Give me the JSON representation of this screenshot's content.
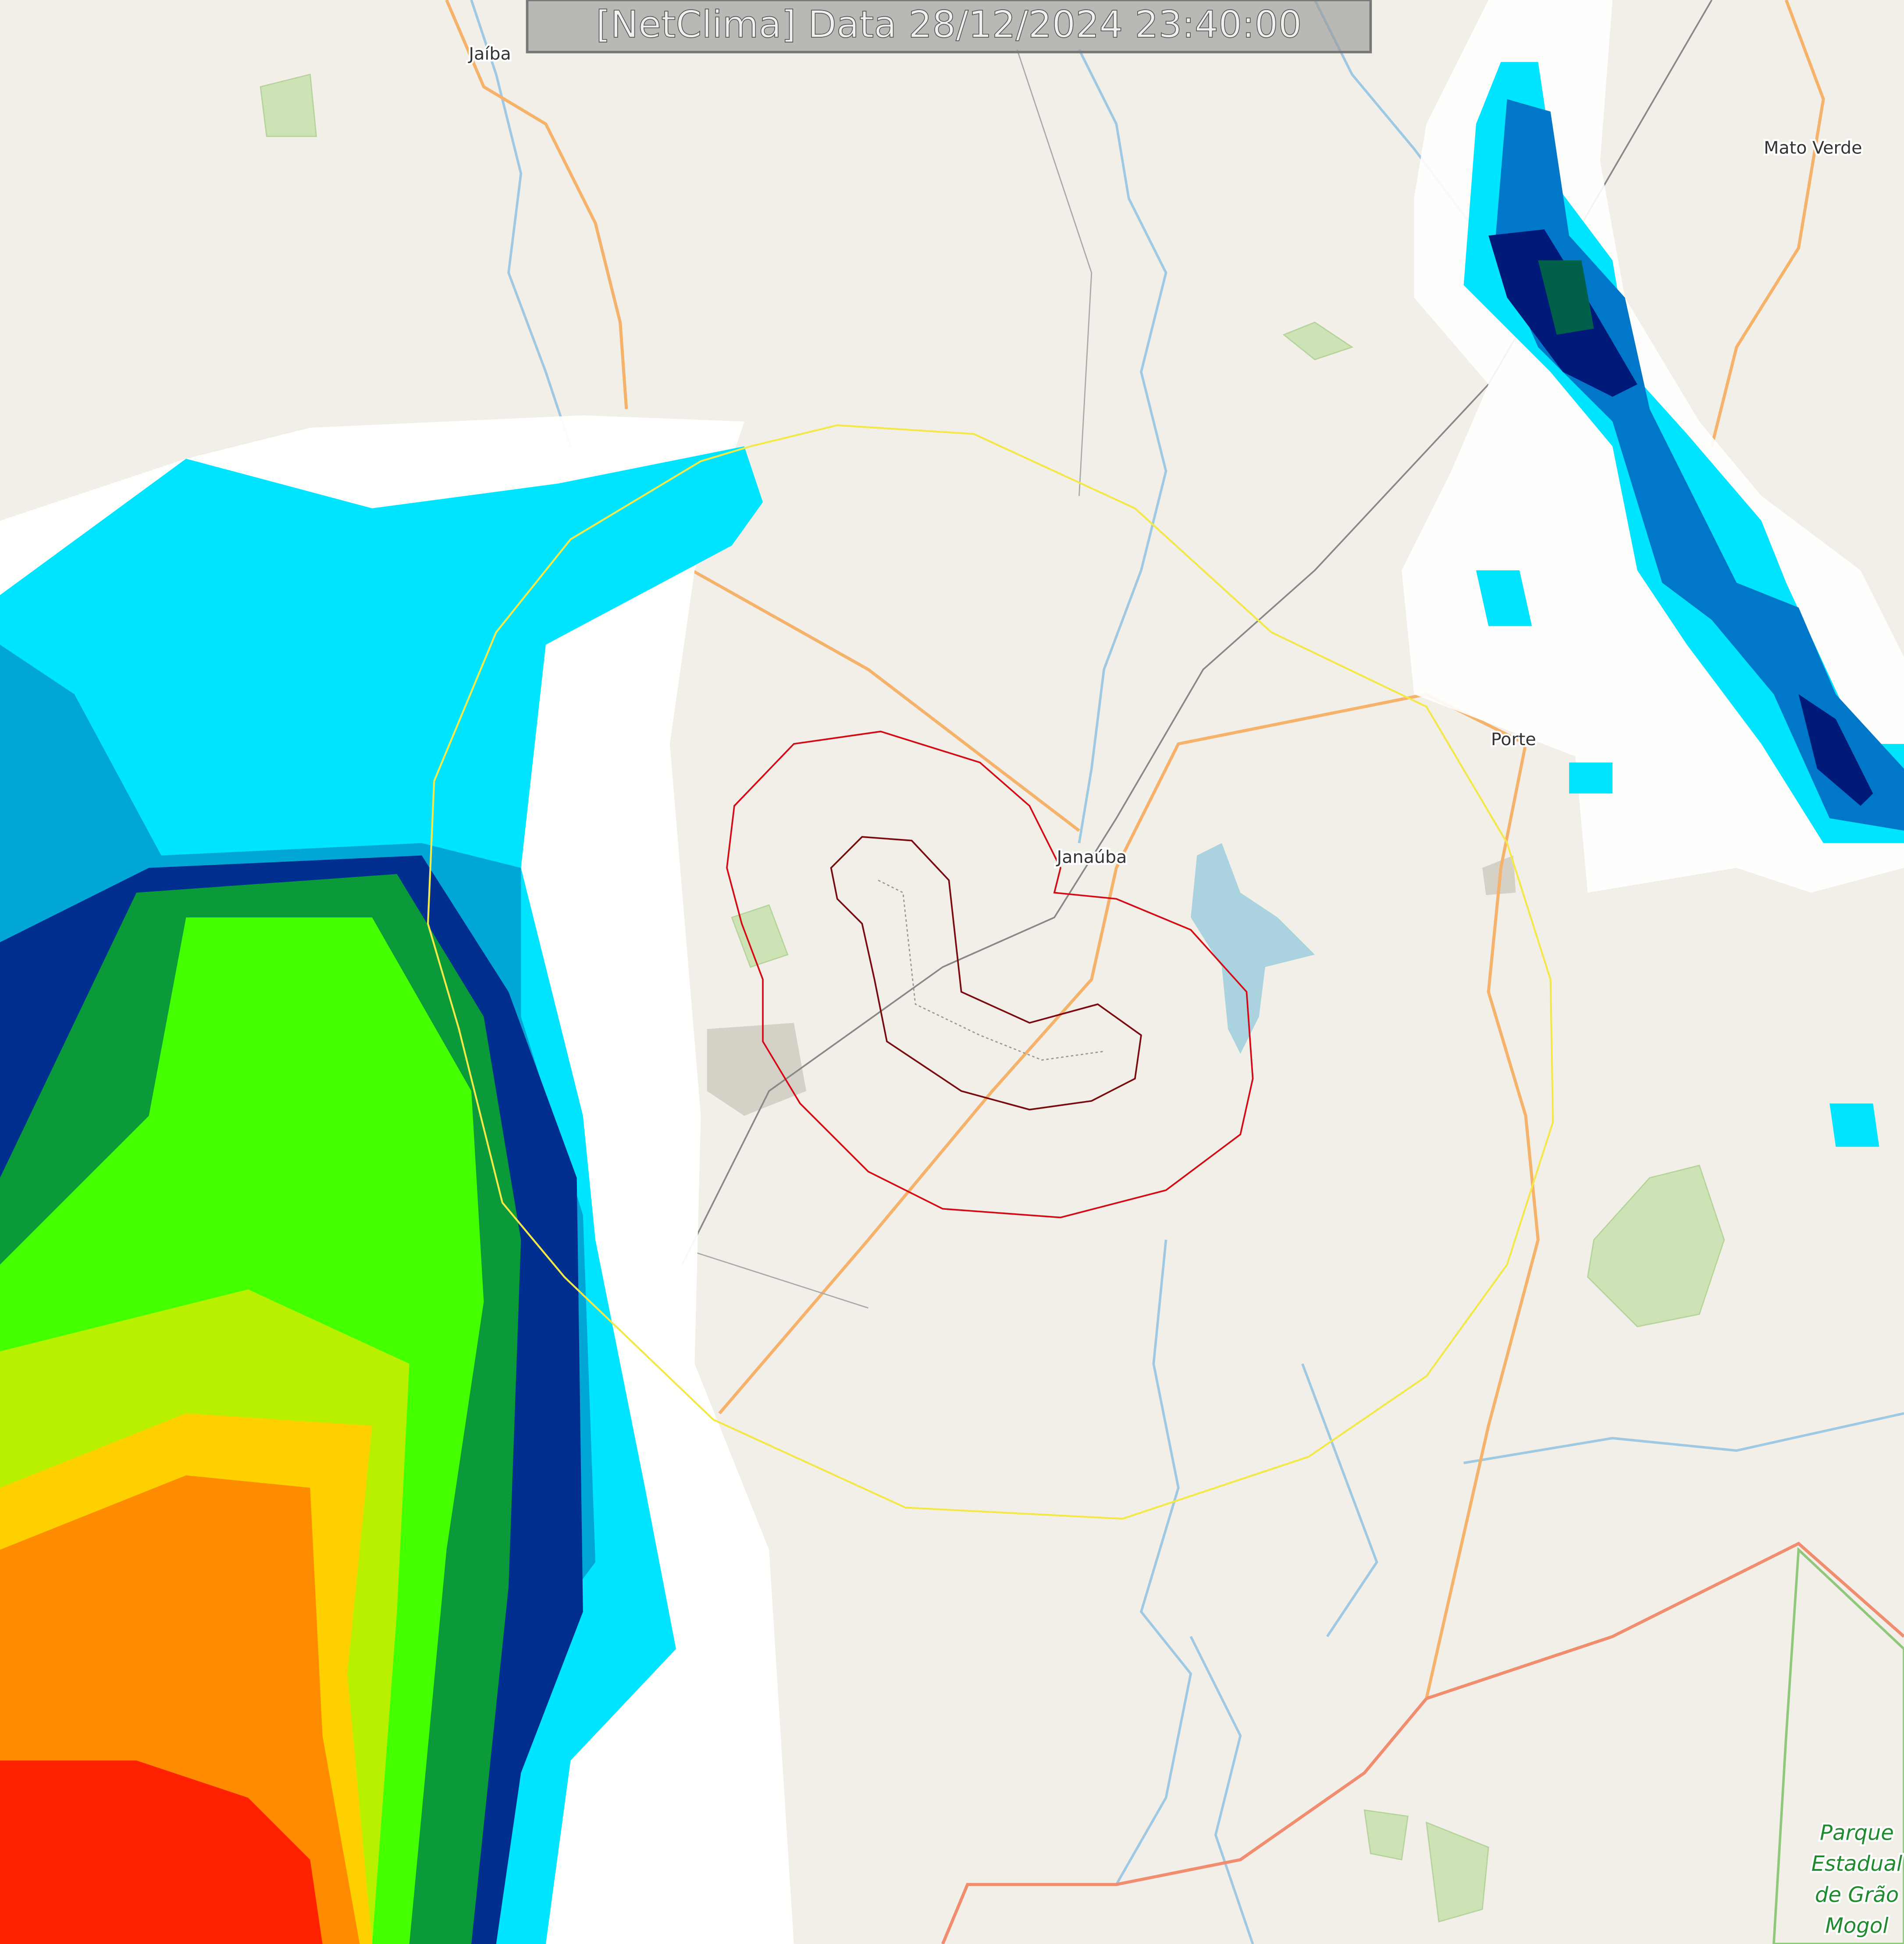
{
  "header": {
    "title": "[NetClima] Data 28/12/2024 23:40:00"
  },
  "places": [
    {
      "label": "Jaíba"
    },
    {
      "label": "Mato Verde"
    },
    {
      "label": "Janaúba"
    },
    {
      "label": "Porte"
    }
  ],
  "park": {
    "lines": [
      "Parque",
      "Estadual",
      "de Grão",
      "Mogol"
    ]
  }
}
